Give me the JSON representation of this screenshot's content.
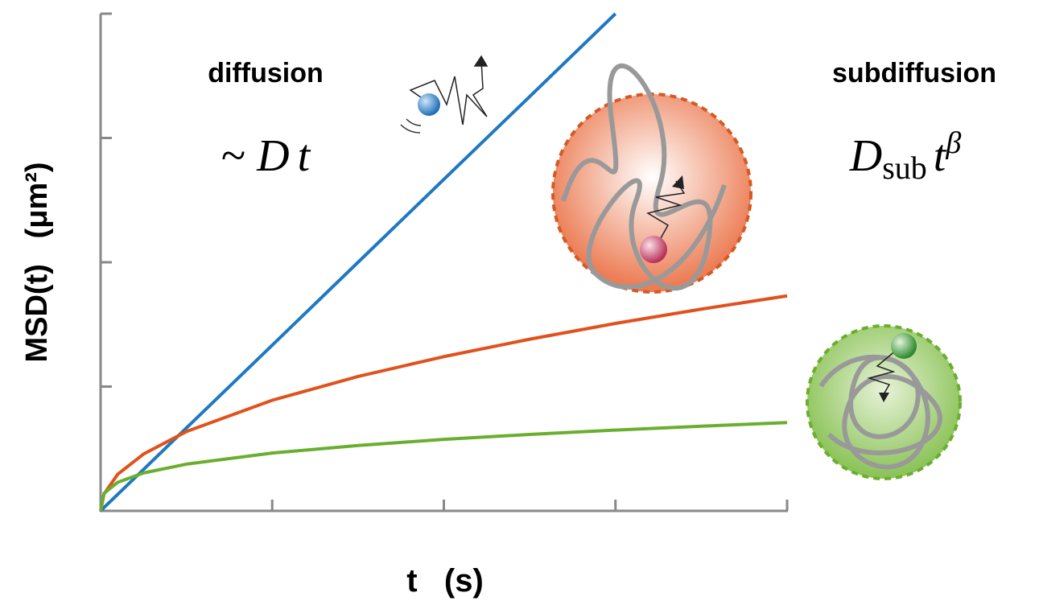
{
  "chart_data": {
    "type": "line",
    "xlabel": "t   (s)",
    "ylabel": "MSD(t)   (μm²)",
    "annotations": {
      "diffusion": "diffusion",
      "diffusion_law": {
        "prefix": "~",
        "D": "D",
        "t": "t"
      },
      "subdiffusion": "subdiffusion",
      "subdiffusion_law": {
        "D": "D",
        "sub": "sub",
        "t": "t",
        "exponent": "β"
      }
    },
    "x": [
      0,
      0.02,
      0.1,
      0.25,
      0.5,
      1,
      1.5,
      2,
      2.5,
      3,
      3.5,
      4
    ],
    "series": [
      {
        "color": "#1f78c0",
        "values": [
          0,
          0.027,
          0.133,
          0.333,
          0.667,
          1.333,
          2,
          2.667,
          3.333,
          4,
          null,
          null
        ]
      },
      {
        "color": "#e0521d",
        "values": [
          0,
          0.136,
          0.295,
          0.457,
          0.638,
          0.89,
          1.081,
          1.241,
          1.381,
          1.508,
          1.623,
          1.73
        ]
      },
      {
        "color": "#6aae2e",
        "values": [
          0,
          0.141,
          0.23,
          0.305,
          0.376,
          0.465,
          0.526,
          0.575,
          0.615,
          0.65,
          0.681,
          0.71
        ]
      }
    ],
    "xlim": [
      0,
      4
    ],
    "ylim": [
      0,
      4
    ],
    "xticks": [
      0,
      1,
      2,
      3,
      4
    ],
    "yticks": [
      0,
      1,
      2,
      3,
      4
    ],
    "grid": false
  }
}
